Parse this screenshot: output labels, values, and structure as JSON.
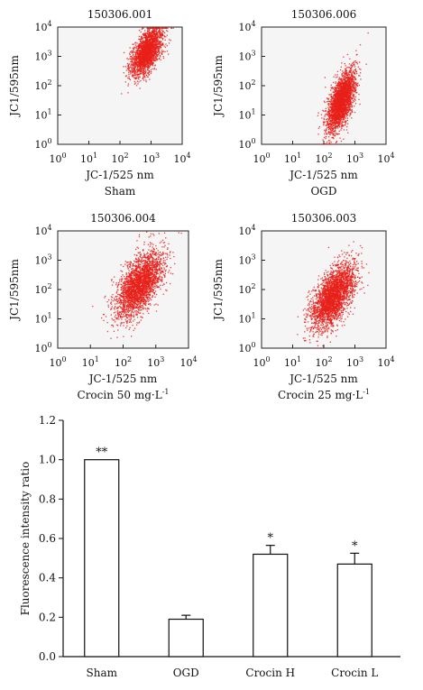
{
  "chart_data": [
    {
      "type": "scatter",
      "title": "150306.001",
      "xlabel": "JC-1/525 nm",
      "ylabel": "JC1/595nm",
      "caption": "Sham",
      "xscale": "log",
      "yscale": "log",
      "xlim": [
        1,
        10000
      ],
      "ylim": [
        1,
        10000
      ],
      "x_ticks": [
        "10",
        "10",
        "10",
        "10",
        "10"
      ],
      "x_tick_exps": [
        "0",
        "1",
        "2",
        "3",
        "4"
      ],
      "y_ticks": [
        "10",
        "10",
        "10",
        "10",
        "10"
      ],
      "y_tick_exps": [
        "0",
        "1",
        "2",
        "3",
        "4"
      ],
      "color": "#e8201a",
      "points": 2200,
      "centroid": [
        700,
        1500
      ],
      "x_spread_log10": 0.25,
      "y_spread_log10": 0.45
    },
    {
      "type": "scatter",
      "title": "150306.006",
      "xlabel": "JC-1/525 nm",
      "ylabel": "JC1/595nm",
      "caption": "OGD",
      "xscale": "log",
      "yscale": "log",
      "xlim": [
        1,
        10000
      ],
      "ylim": [
        1,
        10000
      ],
      "x_ticks": [
        "10",
        "10",
        "10",
        "10",
        "10"
      ],
      "x_tick_exps": [
        "0",
        "1",
        "2",
        "3",
        "4"
      ],
      "y_ticks": [
        "10",
        "10",
        "10",
        "10",
        "10"
      ],
      "y_tick_exps": [
        "0",
        "1",
        "2",
        "3",
        "4"
      ],
      "color": "#e8201a",
      "points": 2600,
      "centroid": [
        350,
        30
      ],
      "x_spread_log10": 0.22,
      "y_spread_log10": 0.55
    },
    {
      "type": "scatter",
      "title": "150306.004",
      "xlabel": "JC-1/525 nm",
      "ylabel": "JC1/595nm",
      "caption": "Crocin 50 mg·L",
      "caption_sup": "-1",
      "xscale": "log",
      "yscale": "log",
      "xlim": [
        1,
        10000
      ],
      "ylim": [
        1,
        10000
      ],
      "x_ticks": [
        "10",
        "10",
        "10",
        "10",
        "10"
      ],
      "x_tick_exps": [
        "0",
        "1",
        "2",
        "3",
        "4"
      ],
      "y_ticks": [
        "10",
        "10",
        "10",
        "10",
        "10"
      ],
      "y_tick_exps": [
        "0",
        "1",
        "2",
        "3",
        "4"
      ],
      "color": "#e8201a",
      "points": 2600,
      "centroid": [
        300,
        150
      ],
      "x_spread_log10": 0.35,
      "y_spread_log10": 0.6
    },
    {
      "type": "scatter",
      "title": "150306.003",
      "xlabel": "JC-1/525 nm",
      "ylabel": "JC1/595nm",
      "caption": "Crocin 25 mg·L",
      "caption_sup": "-1",
      "xscale": "log",
      "yscale": "log",
      "xlim": [
        1,
        10000
      ],
      "ylim": [
        1,
        10000
      ],
      "x_ticks": [
        "10",
        "10",
        "10",
        "10",
        "10"
      ],
      "x_tick_exps": [
        "0",
        "1",
        "2",
        "3",
        "4"
      ],
      "y_ticks": [
        "10",
        "10",
        "10",
        "10",
        "10"
      ],
      "y_tick_exps": [
        "0",
        "1",
        "2",
        "3",
        "4"
      ],
      "color": "#e8201a",
      "points": 2800,
      "centroid": [
        200,
        60
      ],
      "x_spread_log10": 0.35,
      "y_spread_log10": 0.6
    },
    {
      "type": "bar",
      "title": "",
      "xlabel": "",
      "ylabel": "Fluorescence intensity ratio",
      "categories": [
        "Sham",
        "OGD",
        "Crocin H",
        "Crocin L"
      ],
      "values": [
        1.0,
        0.19,
        0.52,
        0.47
      ],
      "errors": [
        0.0,
        0.02,
        0.045,
        0.055
      ],
      "significance": [
        "**",
        "",
        "*",
        "*"
      ],
      "ylim": [
        0.0,
        1.2
      ],
      "y_ticks": [
        "0.0",
        "0.2",
        "0.4",
        "0.6",
        "0.8",
        "1.0",
        "1.2"
      ],
      "bar_fill": "#ffffff",
      "bar_stroke": "#111111"
    }
  ]
}
